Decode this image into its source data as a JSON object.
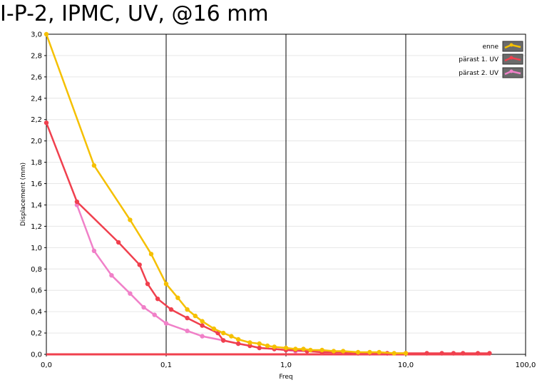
{
  "chart_data": {
    "type": "line",
    "title": "I-P-2, IPMC, UV, @16 mm",
    "xlabel": "Freq",
    "ylabel": "Displacement (mm)",
    "x_scale": "log",
    "x_tick_labels": [
      "0,0",
      "0,1",
      "1,0",
      "10,0",
      "100,0"
    ],
    "x_tick_values": [
      0.01,
      0.1,
      1,
      10,
      100
    ],
    "xlim": [
      0.01,
      100
    ],
    "ylim": [
      0,
      3
    ],
    "y_tick_labels": [
      "0,0",
      "0,2",
      "0,4",
      "0,6",
      "0,8",
      "1,0",
      "1,2",
      "1,4",
      "1,6",
      "1,8",
      "2,0",
      "2,2",
      "2,4",
      "2,6",
      "2,8",
      "3,0"
    ],
    "y_tick_values": [
      0,
      0.2,
      0.4,
      0.6,
      0.8,
      1.0,
      1.2,
      1.4,
      1.6,
      1.8,
      2.0,
      2.2,
      2.4,
      2.6,
      2.8,
      3.0
    ],
    "grid": true,
    "legend_position": "top-right",
    "series": [
      {
        "name": "enne",
        "color": "#f5c000",
        "x": [
          0.01,
          0.025,
          0.05,
          0.075,
          0.1,
          0.125,
          0.15,
          0.175,
          0.2,
          0.25,
          0.3,
          0.35,
          0.4,
          0.5,
          0.6,
          0.7,
          0.8,
          1.0,
          1.2,
          1.4,
          1.6,
          2.0,
          2.5,
          3.0,
          4.0,
          5.0,
          6.0,
          8.0,
          10.0
        ],
        "y": [
          3.0,
          1.77,
          1.26,
          0.94,
          0.66,
          0.53,
          0.42,
          0.36,
          0.31,
          0.24,
          0.2,
          0.17,
          0.14,
          0.11,
          0.1,
          0.08,
          0.07,
          0.06,
          0.05,
          0.05,
          0.04,
          0.04,
          0.03,
          0.03,
          0.02,
          0.02,
          0.02,
          0.01,
          0.01
        ]
      },
      {
        "name": "pärast 1. UV",
        "color": "#f0404e",
        "x": [
          0.01,
          0.018,
          0.04,
          0.06,
          0.07,
          0.085,
          0.11,
          0.15,
          0.2,
          0.27,
          0.3,
          0.4,
          0.5,
          0.6,
          0.8,
          1.0,
          1.2,
          1.5,
          2.0,
          2.5,
          3.0,
          4.0,
          5.0,
          7.0,
          10.0,
          15.0,
          20.0,
          25.0,
          30.0,
          40.0,
          50.0
        ],
        "y": [
          2.17,
          1.43,
          1.05,
          0.84,
          0.66,
          0.52,
          0.42,
          0.34,
          0.27,
          0.2,
          0.13,
          0.1,
          0.08,
          0.06,
          0.05,
          0.04,
          0.04,
          0.03,
          0.02,
          0.02,
          0.02,
          0.01,
          0.01,
          0.01,
          0.01,
          0.01,
          0.01,
          0.01,
          0.01,
          0.01,
          0.01
        ]
      },
      {
        "name": "pärast 2. UV",
        "color": "#f080c8",
        "x": [
          0.018,
          0.025,
          0.035,
          0.05,
          0.065,
          0.08,
          0.1,
          0.15,
          0.2,
          0.3,
          0.4,
          0.5,
          0.6,
          0.8,
          1.0,
          1.2,
          1.5,
          2.0,
          2.5,
          3.0,
          4.0,
          5.0,
          7.0
        ],
        "y": [
          1.4,
          0.97,
          0.74,
          0.57,
          0.44,
          0.37,
          0.29,
          0.22,
          0.17,
          0.13,
          0.1,
          0.08,
          0.06,
          0.05,
          0.04,
          0.03,
          0.03,
          0.02,
          0.02,
          0.02,
          0.01,
          0.01,
          0.01
        ]
      }
    ],
    "baseline": {
      "color": "#f0404e",
      "y": 0
    }
  }
}
